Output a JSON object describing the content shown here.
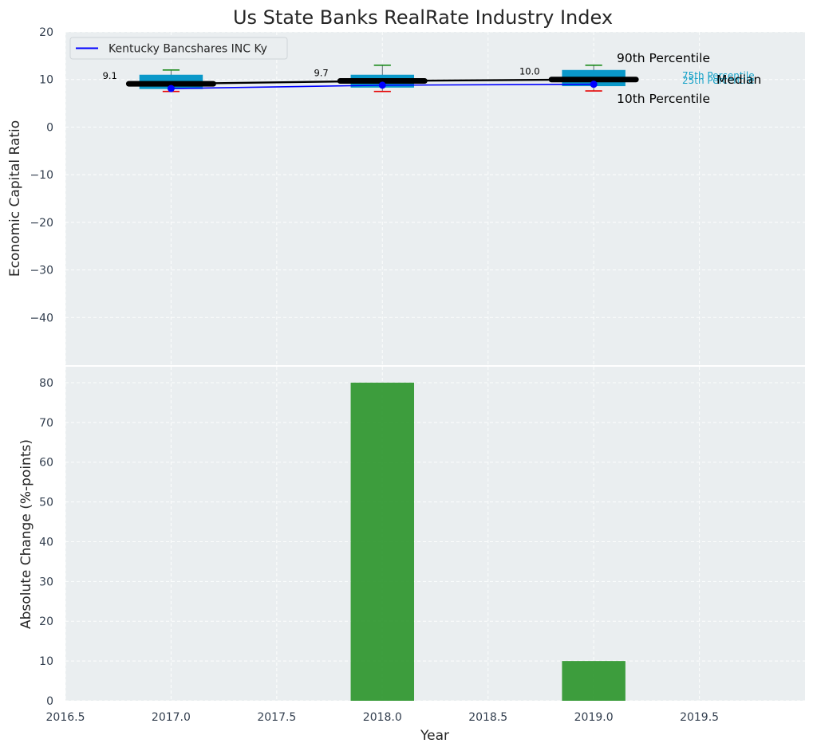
{
  "chart_data": [
    {
      "type": "box-line",
      "title": "Us State Banks RealRate Industry Index",
      "ylabel": "Economic Capital Ratio",
      "xlim": [
        2016.5,
        2020.0
      ],
      "ylim": [
        -50,
        20
      ],
      "yticks": [
        20,
        10,
        0,
        -10,
        -20,
        -30,
        -40
      ],
      "grid": true,
      "legend": {
        "placement": "top-left",
        "entries": [
          "Kentucky Bancshares INC Ky"
        ]
      },
      "boxes": [
        {
          "x": 2017,
          "p10": 7.5,
          "p25": 8.0,
          "median": 9.1,
          "p75": 11.0,
          "p90": 12.0
        },
        {
          "x": 2018,
          "p10": 7.5,
          "p25": 8.3,
          "median": 9.7,
          "p75": 11.0,
          "p90": 13.0
        },
        {
          "x": 2019,
          "p10": 7.6,
          "p25": 8.6,
          "median": 10.0,
          "p75": 12.0,
          "p90": 13.0
        }
      ],
      "median_labels": [
        "9.1",
        "9.7",
        "10.0"
      ],
      "series": [
        {
          "name": "Kentucky Bancshares INC Ky",
          "color": "#0000ff",
          "x": [
            2017,
            2018,
            2019
          ],
          "y": [
            8.1,
            8.8,
            9.0
          ]
        }
      ],
      "median_line": {
        "color": "#000000",
        "x": [
          2017,
          2018,
          2019
        ],
        "y": [
          9.1,
          9.7,
          10.0
        ]
      },
      "percentile_labels": {
        "p90": "90th Percentile",
        "p75": "75th Percentile",
        "median": "Median",
        "p25": "25th Percentile",
        "p10": "10th Percentile"
      },
      "colors": {
        "box": "#0a98c9",
        "whisker_top": "#1b8a1b",
        "whisker_bottom": "#e60000",
        "bg": "#eaeef0",
        "annotation_small": "#17a2c8"
      }
    },
    {
      "type": "bar",
      "ylabel": "Absolute Change (%-points)",
      "xlabel": "Year",
      "xlim": [
        2016.5,
        2020.0
      ],
      "ylim": [
        0,
        84
      ],
      "yticks": [
        0,
        10,
        20,
        30,
        40,
        50,
        60,
        70,
        80
      ],
      "xticks": [
        "2016.5",
        "2017.0",
        "2017.5",
        "2018.0",
        "2018.5",
        "2019.0",
        "2019.5"
      ],
      "x": [
        2018,
        2019
      ],
      "values": [
        80,
        10
      ],
      "color": "#2e962e",
      "grid": true
    }
  ]
}
